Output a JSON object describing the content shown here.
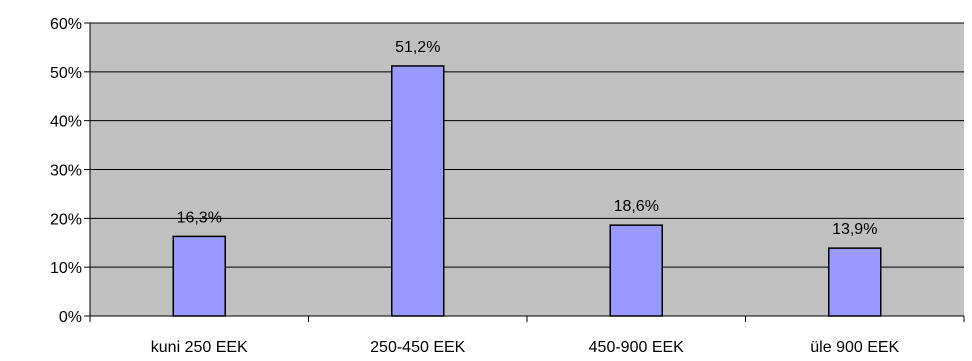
{
  "chart_data": {
    "type": "bar",
    "categories": [
      "kuni 250 EEK",
      "250-450 EEK",
      "450-900 EEK",
      "üle 900 EEK"
    ],
    "values": [
      16.3,
      51.2,
      18.6,
      13.9
    ],
    "data_labels": [
      "16,3%",
      "51,2%",
      "18,6%",
      "13,9%"
    ],
    "title": "",
    "xlabel": "",
    "ylabel": "",
    "ylim": [
      0,
      60
    ],
    "yticks": [
      0,
      10,
      20,
      30,
      40,
      50,
      60
    ],
    "ytick_labels": [
      "0%",
      "10%",
      "20%",
      "30%",
      "40%",
      "50%",
      "60%"
    ],
    "grid": true,
    "legend": "none",
    "colors": {
      "bar_fill": "#9999ff",
      "bar_stroke": "#000000",
      "plot_background": "#c0c0c0",
      "gridline": "#000000",
      "page_background": "#ffffff"
    }
  }
}
